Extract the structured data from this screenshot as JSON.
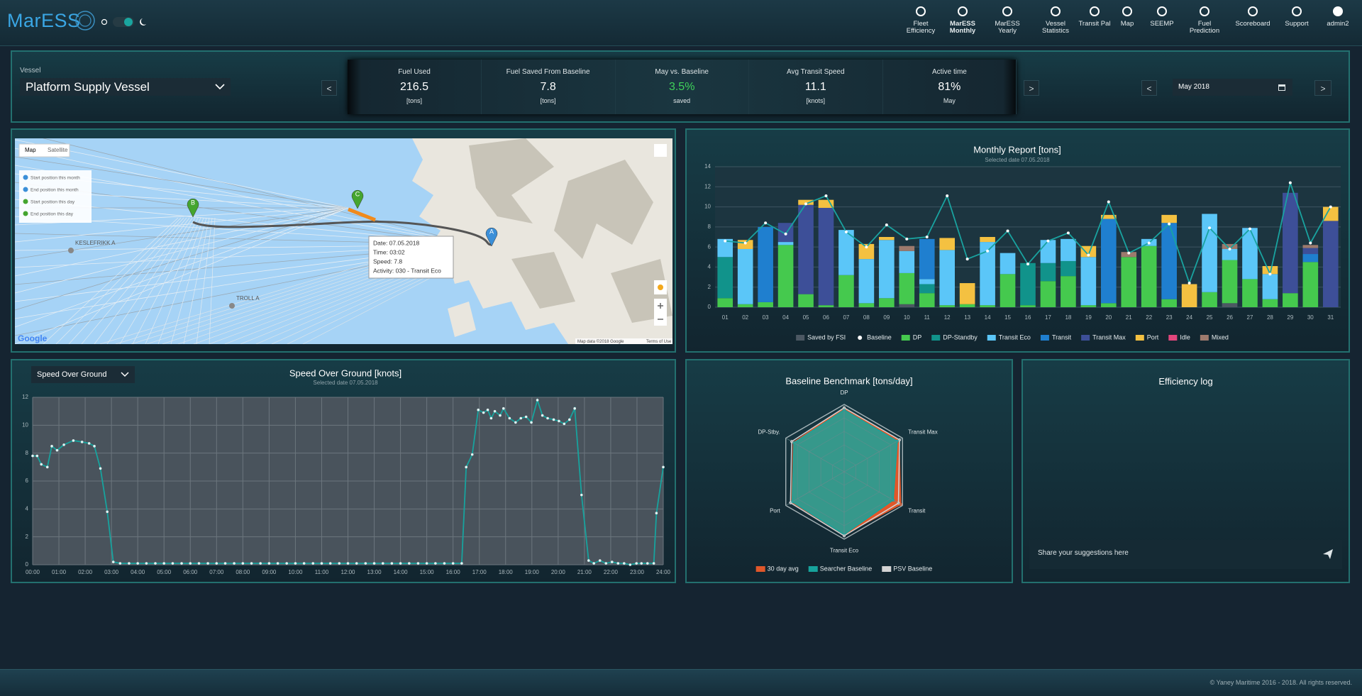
{
  "header": {
    "logo": "MarESS",
    "nav": [
      "Fleet Efficiency",
      "MarESS Monthly",
      "MarESS Yearly",
      "Vessel Statistics",
      "Transit Pal",
      "Map",
      "SEEMP",
      "Fuel Prediction",
      "Scoreboard",
      "Support"
    ],
    "user": "admin2"
  },
  "vessel_bar": {
    "vessel_label": "Vessel",
    "vessel": "Platform Supply Vessel",
    "kpi_prev": "<",
    "kpi_next": ">",
    "kpis": [
      {
        "label": "Fuel Used",
        "value": "216.5",
        "unit": "[tons]"
      },
      {
        "label": "Fuel Saved From Baseline",
        "value": "7.8",
        "unit": "[tons]"
      },
      {
        "label": "May vs. Baseline",
        "value": "3.5%",
        "unit": "saved"
      },
      {
        "label": "Avg Transit Speed",
        "value": "11.1",
        "unit": "[knots]"
      },
      {
        "label": "Active time",
        "value": "81%",
        "unit": "May"
      }
    ],
    "date_prev": "<",
    "date": "May 2018",
    "date_next": ">"
  },
  "map": {
    "tabs": [
      "Map",
      "Satellite"
    ],
    "legend": [
      "Start position this month",
      "End position this month",
      "Start position this day",
      "End position this day"
    ],
    "places": [
      "KESLEFRIKK A",
      "TROLL A"
    ],
    "markers": [
      "A",
      "B",
      "C"
    ],
    "tooltip": [
      "Date: 07.05.2018",
      "Time: 03:02",
      "Speed: 7.8",
      "Activity: 030 - Transit Eco"
    ],
    "google": "Google",
    "attribution": "Map data ©2018 Google",
    "terms": "Terms of Use"
  },
  "chart_data": [
    {
      "type": "bar",
      "stacked": true,
      "title": "Monthly Report [tons]",
      "subtitle": "Selected date 07.05.2018",
      "categories": [
        "01",
        "02",
        "03",
        "04",
        "05",
        "06",
        "07",
        "08",
        "09",
        "10",
        "11",
        "12",
        "13",
        "14",
        "15",
        "16",
        "17",
        "18",
        "19",
        "20",
        "21",
        "22",
        "23",
        "24",
        "25",
        "26",
        "27",
        "28",
        "29",
        "30",
        "31"
      ],
      "ylim": [
        0,
        14
      ],
      "yticks": [
        0,
        2,
        4,
        6,
        8,
        10,
        12,
        14
      ],
      "grid": true,
      "legend": "bottom",
      "series": [
        {
          "name": "Saved by FSI",
          "color": "#4c5863",
          "values": [
            0,
            0,
            0,
            0,
            0,
            0,
            0,
            0,
            0,
            0.3,
            0,
            0,
            0,
            0,
            0,
            0,
            0,
            0,
            0,
            0,
            0,
            0,
            0,
            0,
            0,
            0.4,
            0,
            0,
            0,
            0,
            0
          ]
        },
        {
          "name": "Baseline",
          "type": "line",
          "color": "#19a3a0",
          "marker_color": "#ffffff",
          "values": [
            6.6,
            6.4,
            8.4,
            7.3,
            10.3,
            11.1,
            7.5,
            6.0,
            8.2,
            6.8,
            7.0,
            11.1,
            4.8,
            5.6,
            7.6,
            4.3,
            6.6,
            7.4,
            5.2,
            10.5,
            5.4,
            6.4,
            8.3,
            2.4,
            7.9,
            5.8,
            7.8,
            3.3,
            12.4,
            6.4,
            10.0
          ]
        },
        {
          "name": "DP",
          "color": "#45c94e",
          "values": [
            0.9,
            0.3,
            0.5,
            6.2,
            1.3,
            0.2,
            3.2,
            0.4,
            0.9,
            3.1,
            1.4,
            0.2,
            0.3,
            0.2,
            3.3,
            0.2,
            2.6,
            3.1,
            0.2,
            0.4,
            5.0,
            6.1,
            0.8,
            0,
            1.5,
            4.3,
            2.8,
            0.8,
            1.4,
            4.5,
            0
          ]
        },
        {
          "name": "DP-Standby",
          "color": "#11938b",
          "values": [
            4.1,
            0,
            0,
            0,
            0,
            0,
            0,
            0,
            0,
            0,
            0.9,
            0,
            0,
            0,
            0,
            4.2,
            1.8,
            1.5,
            0,
            0,
            0,
            0,
            0,
            0,
            0,
            0,
            0,
            0,
            0,
            0,
            0
          ]
        },
        {
          "name": "Transit Eco",
          "color": "#5bc6f8",
          "values": [
            1.8,
            5.5,
            0,
            0.3,
            0,
            0,
            4.5,
            4.4,
            5.8,
            2.2,
            0.5,
            5.5,
            0,
            6.3,
            2.1,
            0,
            2.3,
            2.2,
            4.8,
            0,
            0,
            0.7,
            0,
            0,
            7.8,
            1.1,
            5.1,
            2.5,
            0,
            0,
            0
          ]
        },
        {
          "name": "Transit",
          "color": "#1f7fcf",
          "values": [
            0,
            0,
            7.5,
            0,
            0,
            0,
            0,
            0,
            0,
            0,
            4.0,
            0,
            0,
            0,
            0,
            0,
            0,
            0,
            0,
            8.4,
            0,
            0,
            7.6,
            0,
            0,
            0,
            0,
            0,
            0,
            0.8,
            0
          ]
        },
        {
          "name": "Transit Max",
          "color": "#3d4f98",
          "values": [
            0,
            0,
            0,
            1.9,
            8.9,
            9.7,
            0,
            0,
            0,
            0,
            0,
            0,
            0,
            0,
            0,
            0,
            0,
            0,
            0,
            0,
            0,
            0,
            0,
            0,
            0,
            0,
            0,
            0,
            10.0,
            0.6,
            8.6
          ]
        },
        {
          "name": "Port",
          "color": "#f4c141",
          "values": [
            0,
            0.9,
            0,
            0,
            0.5,
            0.8,
            0,
            1.5,
            0.3,
            0,
            0,
            1.2,
            2.1,
            0.5,
            0,
            0,
            0,
            0,
            1.1,
            0.4,
            0,
            0,
            0.8,
            2.3,
            0,
            0,
            0,
            0.8,
            0,
            0,
            1.4
          ]
        },
        {
          "name": "Idle",
          "color": "#e2467c",
          "values": [
            0,
            0,
            0,
            0,
            0,
            0,
            0,
            0,
            0,
            0,
            0,
            0,
            0,
            0,
            0,
            0,
            0,
            0,
            0,
            0,
            0,
            0,
            0,
            0,
            0,
            0,
            0,
            0,
            0,
            0,
            0
          ]
        },
        {
          "name": "Mixed",
          "color": "#9d7a6d",
          "values": [
            0,
            0,
            0,
            0,
            0,
            0,
            0,
            0,
            0,
            0.5,
            0,
            0,
            0,
            0,
            0,
            0,
            0,
            0,
            0,
            0,
            0.5,
            0,
            0,
            0,
            0,
            0.5,
            0,
            0,
            0,
            0.3,
            0
          ]
        }
      ]
    },
    {
      "type": "line",
      "title": "Speed Over Ground [knots]",
      "subtitle": "Selected date 07.05.2018",
      "selector": "Speed Over Ground",
      "color": "#17a39e",
      "grid": true,
      "x": [
        0,
        0.17,
        0.33,
        0.56,
        0.73,
        0.93,
        1.19,
        1.55,
        1.88,
        2.15,
        2.35,
        2.58,
        2.84,
        3.07,
        3.33,
        3.67,
        4,
        4.33,
        4.67,
        5,
        5.33,
        5.67,
        6,
        6.33,
        6.67,
        7,
        7.33,
        7.67,
        8,
        8.33,
        8.67,
        9,
        9.33,
        9.67,
        10,
        10.33,
        10.67,
        11,
        11.33,
        11.67,
        12,
        12.33,
        12.67,
        13,
        13.33,
        13.67,
        14,
        14.33,
        14.67,
        15,
        15.33,
        15.67,
        16,
        16.33,
        16.5,
        16.73,
        16.96,
        17.16,
        17.32,
        17.45,
        17.59,
        17.79,
        17.92,
        18.15,
        18.38,
        18.58,
        18.78,
        18.98,
        19.21,
        19.4,
        19.6,
        19.83,
        20.03,
        20.23,
        20.43,
        20.63,
        20.89,
        21.16,
        21.36,
        21.59,
        21.82,
        22.05,
        22.28,
        22.51,
        22.74,
        22.98,
        23.17,
        23.4,
        23.64,
        23.74,
        24
      ],
      "values": [
        7.8,
        7.8,
        7.2,
        7.0,
        8.5,
        8.2,
        8.6,
        8.9,
        8.8,
        8.7,
        8.5,
        6.9,
        3.8,
        0.2,
        0.1,
        0.1,
        0.1,
        0.1,
        0.1,
        0.1,
        0.1,
        0.1,
        0.1,
        0.1,
        0.1,
        0.1,
        0.1,
        0.1,
        0.1,
        0.1,
        0.1,
        0.1,
        0.1,
        0.1,
        0.1,
        0.1,
        0.1,
        0.1,
        0.1,
        0.1,
        0.1,
        0.1,
        0.1,
        0.1,
        0.1,
        0.1,
        0.1,
        0.1,
        0.1,
        0.1,
        0.1,
        0.1,
        0.1,
        0.1,
        7.0,
        7.9,
        11.1,
        10.9,
        11.1,
        10.5,
        11.0,
        10.7,
        11.2,
        10.5,
        10.2,
        10.5,
        10.6,
        10.2,
        11.8,
        10.7,
        10.5,
        10.4,
        10.3,
        10.1,
        10.4,
        11.2,
        5.0,
        0.3,
        0.1,
        0.3,
        0.1,
        0.2,
        0.1,
        0.1,
        0,
        0.1,
        0.1,
        0.1,
        0.1,
        3.7,
        7.0
      ],
      "xlim": [
        0,
        24
      ],
      "xticks": [
        {
          "value": 0,
          "label": "00:00"
        },
        {
          "value": 1,
          "label": "01:00"
        },
        {
          "value": 2,
          "label": "02:00"
        },
        {
          "value": 3,
          "label": "03:00"
        },
        {
          "value": 4,
          "label": "04:00"
        },
        {
          "value": 5,
          "label": "05:00"
        },
        {
          "value": 6,
          "label": "06:00"
        },
        {
          "value": 7,
          "label": "07:00"
        },
        {
          "value": 8,
          "label": "08:00"
        },
        {
          "value": 9,
          "label": "09:00"
        },
        {
          "value": 10,
          "label": "10:00"
        },
        {
          "value": 11,
          "label": "11:00"
        },
        {
          "value": 12,
          "label": "12:00"
        },
        {
          "value": 13,
          "label": "13:00"
        },
        {
          "value": 14,
          "label": "14:00"
        },
        {
          "value": 15,
          "label": "15:00"
        },
        {
          "value": 16,
          "label": "16:00"
        },
        {
          "value": 17,
          "label": "17:00"
        },
        {
          "value": 18,
          "label": "18:00"
        },
        {
          "value": 19,
          "label": "19:00"
        },
        {
          "value": 20,
          "label": "20:00"
        },
        {
          "value": 21,
          "label": "21:00"
        },
        {
          "value": 22,
          "label": "22:00"
        },
        {
          "value": 23,
          "label": "23:00"
        },
        {
          "value": 24,
          "label": "24:00"
        }
      ],
      "ylim": [
        0,
        12
      ],
      "yticks": [
        0,
        2,
        4,
        6,
        8,
        10,
        12
      ]
    },
    {
      "type": "radar",
      "title": "Baseline Benchmark [tons/day]",
      "legend": "bottom",
      "categories": [
        "DP",
        "Transit Max",
        "Transit",
        "Transit Eco",
        "Port",
        "DP-Stby."
      ],
      "rlim": [
        0,
        1
      ],
      "series": [
        {
          "name": "30 day avg",
          "color": "#e0572a",
          "values": [
            0.95,
            0.94,
            0.97,
            0.93,
            0.9,
            0.87
          ]
        },
        {
          "name": "Searcher Baseline",
          "color": "#17a39c",
          "values": [
            0.92,
            0.91,
            0.84,
            0.93,
            0.89,
            0.86
          ]
        },
        {
          "name": "PSV Baseline",
          "color": "#d4d4d4",
          "values": [
            0.95,
            0.95,
            0.93,
            0.95,
            0.92,
            0.9
          ]
        }
      ]
    }
  ],
  "efficiency_log": {
    "title": "Efficiency log",
    "placeholder": "Share your suggestions here"
  },
  "footer": "© Yaney Maritime 2016 - 2018. All rights reserved."
}
